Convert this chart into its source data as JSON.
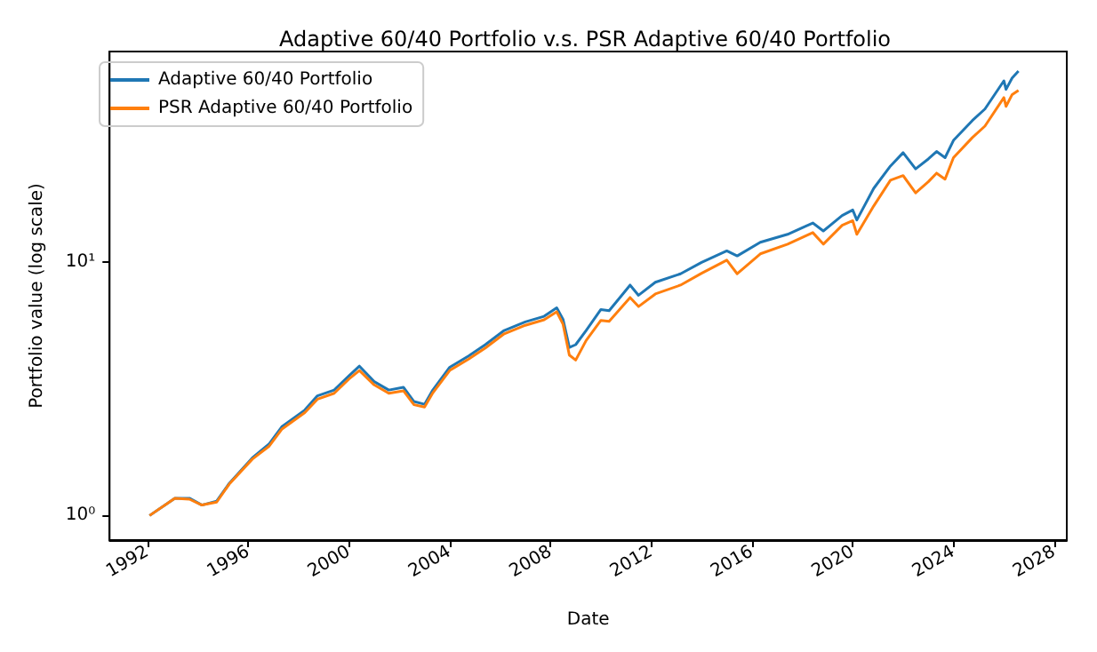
{
  "chart_data": {
    "type": "line",
    "title": "Adaptive 60/40 Portfolio v.s. PSR Adaptive 60/40 Portfolio",
    "xlabel": "Date",
    "ylabel": "Portfolio value (log scale)",
    "log": "y",
    "legend": "top left",
    "marker": "none",
    "line_style": "solid",
    "x": [
      "1992-02",
      "1993-02",
      "1993-09",
      "1994-03",
      "1994-10",
      "1995-04",
      "1996-03",
      "1996-11",
      "1997-05",
      "1998-04",
      "1998-10",
      "1999-06",
      "2000-01",
      "2000-06",
      "2001-01",
      "2001-08",
      "2002-03",
      "2002-08",
      "2003-01",
      "2003-05",
      "2004-01",
      "2004-10",
      "2005-06",
      "2006-03",
      "2007-01",
      "2007-10",
      "2008-04",
      "2008-07",
      "2008-10",
      "2009-01",
      "2009-06",
      "2010-01",
      "2010-05",
      "2011-03",
      "2011-07",
      "2012-03",
      "2013-03",
      "2014-01",
      "2015-01",
      "2015-06",
      "2016-05",
      "2017-06",
      "2018-06",
      "2018-11",
      "2019-08",
      "2020-01",
      "2020-03",
      "2020-11",
      "2021-07",
      "2022-01",
      "2022-07",
      "2023-01",
      "2023-05",
      "2023-09",
      "2024-01",
      "2024-10",
      "2025-04",
      "2026-01",
      "2026-02",
      "2026-05",
      "2026-08"
    ],
    "xlim": [
      "1990-07",
      "2028-07"
    ],
    "xticks": [
      {
        "value": "1992",
        "label": "1992"
      },
      {
        "value": "1996",
        "label": "1996"
      },
      {
        "value": "2000",
        "label": "2000"
      },
      {
        "value": "2004",
        "label": "2004"
      },
      {
        "value": "2008",
        "label": "2008"
      },
      {
        "value": "2012",
        "label": "2012"
      },
      {
        "value": "2016",
        "label": "2016"
      },
      {
        "value": "2020",
        "label": "2020"
      },
      {
        "value": "2024",
        "label": "2024"
      },
      {
        "value": "2028",
        "label": "2028"
      }
    ],
    "ylim": [
      0.8,
      68
    ],
    "yticks": [
      {
        "value": 1,
        "label": "10⁰"
      },
      {
        "value": 10,
        "label": "10¹"
      }
    ],
    "series": [
      {
        "name": "Adaptive 60/40 Portfolio",
        "color": "#1f77b4",
        "values": [
          1.0,
          1.17,
          1.17,
          1.1,
          1.14,
          1.34,
          1.69,
          1.92,
          2.24,
          2.61,
          2.97,
          3.13,
          3.56,
          3.89,
          3.38,
          3.13,
          3.21,
          2.82,
          2.75,
          3.13,
          3.85,
          4.27,
          4.73,
          5.38,
          5.82,
          6.12,
          6.61,
          5.96,
          4.61,
          4.73,
          5.38,
          6.51,
          6.44,
          8.13,
          7.41,
          8.34,
          9.01,
          10.0,
          11.1,
          10.6,
          12.0,
          12.9,
          14.3,
          13.3,
          15.3,
          16.1,
          14.7,
          19.6,
          24.0,
          27.1,
          23.4,
          25.6,
          27.4,
          25.9,
          30.3,
          36.3,
          40.3,
          52.1,
          48.2,
          53.5,
          56.9
        ]
      },
      {
        "name": "PSR Adaptive 60/40 Portfolio",
        "color": "#ff7f0e",
        "values": [
          1.0,
          1.17,
          1.16,
          1.1,
          1.13,
          1.33,
          1.67,
          1.88,
          2.19,
          2.55,
          2.88,
          3.04,
          3.46,
          3.74,
          3.28,
          3.04,
          3.11,
          2.74,
          2.68,
          3.05,
          3.74,
          4.15,
          4.59,
          5.22,
          5.64,
          5.93,
          6.38,
          5.7,
          4.3,
          4.11,
          4.91,
          5.9,
          5.85,
          7.26,
          6.69,
          7.5,
          8.13,
          9.05,
          10.2,
          9.01,
          10.8,
          11.8,
          13.1,
          11.8,
          14.0,
          14.6,
          12.9,
          16.7,
          21.1,
          22.0,
          18.8,
          20.8,
          22.5,
          21.3,
          25.9,
          31.1,
          34.5,
          44.7,
          41.3,
          46.0,
          47.8
        ]
      }
    ]
  }
}
